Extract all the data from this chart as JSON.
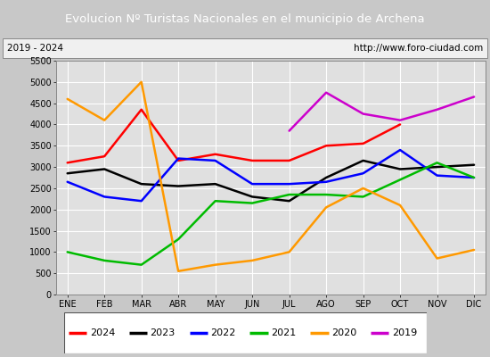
{
  "title": "Evolucion Nº Turistas Nacionales en el municipio de Archena",
  "subtitle_left": "2019 - 2024",
  "subtitle_right": "http://www.foro-ciudad.com",
  "months": [
    "ENE",
    "FEB",
    "MAR",
    "ABR",
    "MAY",
    "JUN",
    "JUL",
    "AGO",
    "SEP",
    "OCT",
    "NOV",
    "DIC"
  ],
  "ylim": [
    0,
    5500
  ],
  "yticks": [
    0,
    500,
    1000,
    1500,
    2000,
    2500,
    3000,
    3500,
    4000,
    4500,
    5000,
    5500
  ],
  "series": {
    "2024": {
      "color": "#ff0000",
      "values": [
        3100,
        3250,
        4350,
        3150,
        3300,
        3150,
        3150,
        3500,
        3550,
        4000,
        null,
        null
      ]
    },
    "2023": {
      "color": "#000000",
      "values": [
        2850,
        2950,
        2600,
        2550,
        2600,
        2300,
        2200,
        2750,
        3150,
        2950,
        3000,
        3050
      ]
    },
    "2022": {
      "color": "#0000ff",
      "values": [
        2650,
        2300,
        2200,
        3200,
        3150,
        2600,
        2600,
        2650,
        2850,
        3400,
        2800,
        2750
      ]
    },
    "2021": {
      "color": "#00bb00",
      "values": [
        1000,
        800,
        700,
        1300,
        2200,
        2150,
        2350,
        2350,
        2300,
        2700,
        3100,
        2750
      ]
    },
    "2020": {
      "color": "#ff9900",
      "values": [
        4600,
        4100,
        5000,
        550,
        700,
        800,
        1000,
        2050,
        2500,
        2100,
        850,
        1050
      ]
    },
    "2019": {
      "color": "#cc00cc",
      "values": [
        null,
        null,
        null,
        null,
        null,
        null,
        3850,
        4750,
        4250,
        4100,
        4350,
        4650
      ]
    }
  },
  "title_bg_color": "#4472c4",
  "title_text_color": "#ffffff",
  "plot_bg_color": "#e0e0e0",
  "grid_color": "#ffffff",
  "subtitle_bg_color": "#f0f0f0",
  "legend_bg_color": "#ffffff"
}
